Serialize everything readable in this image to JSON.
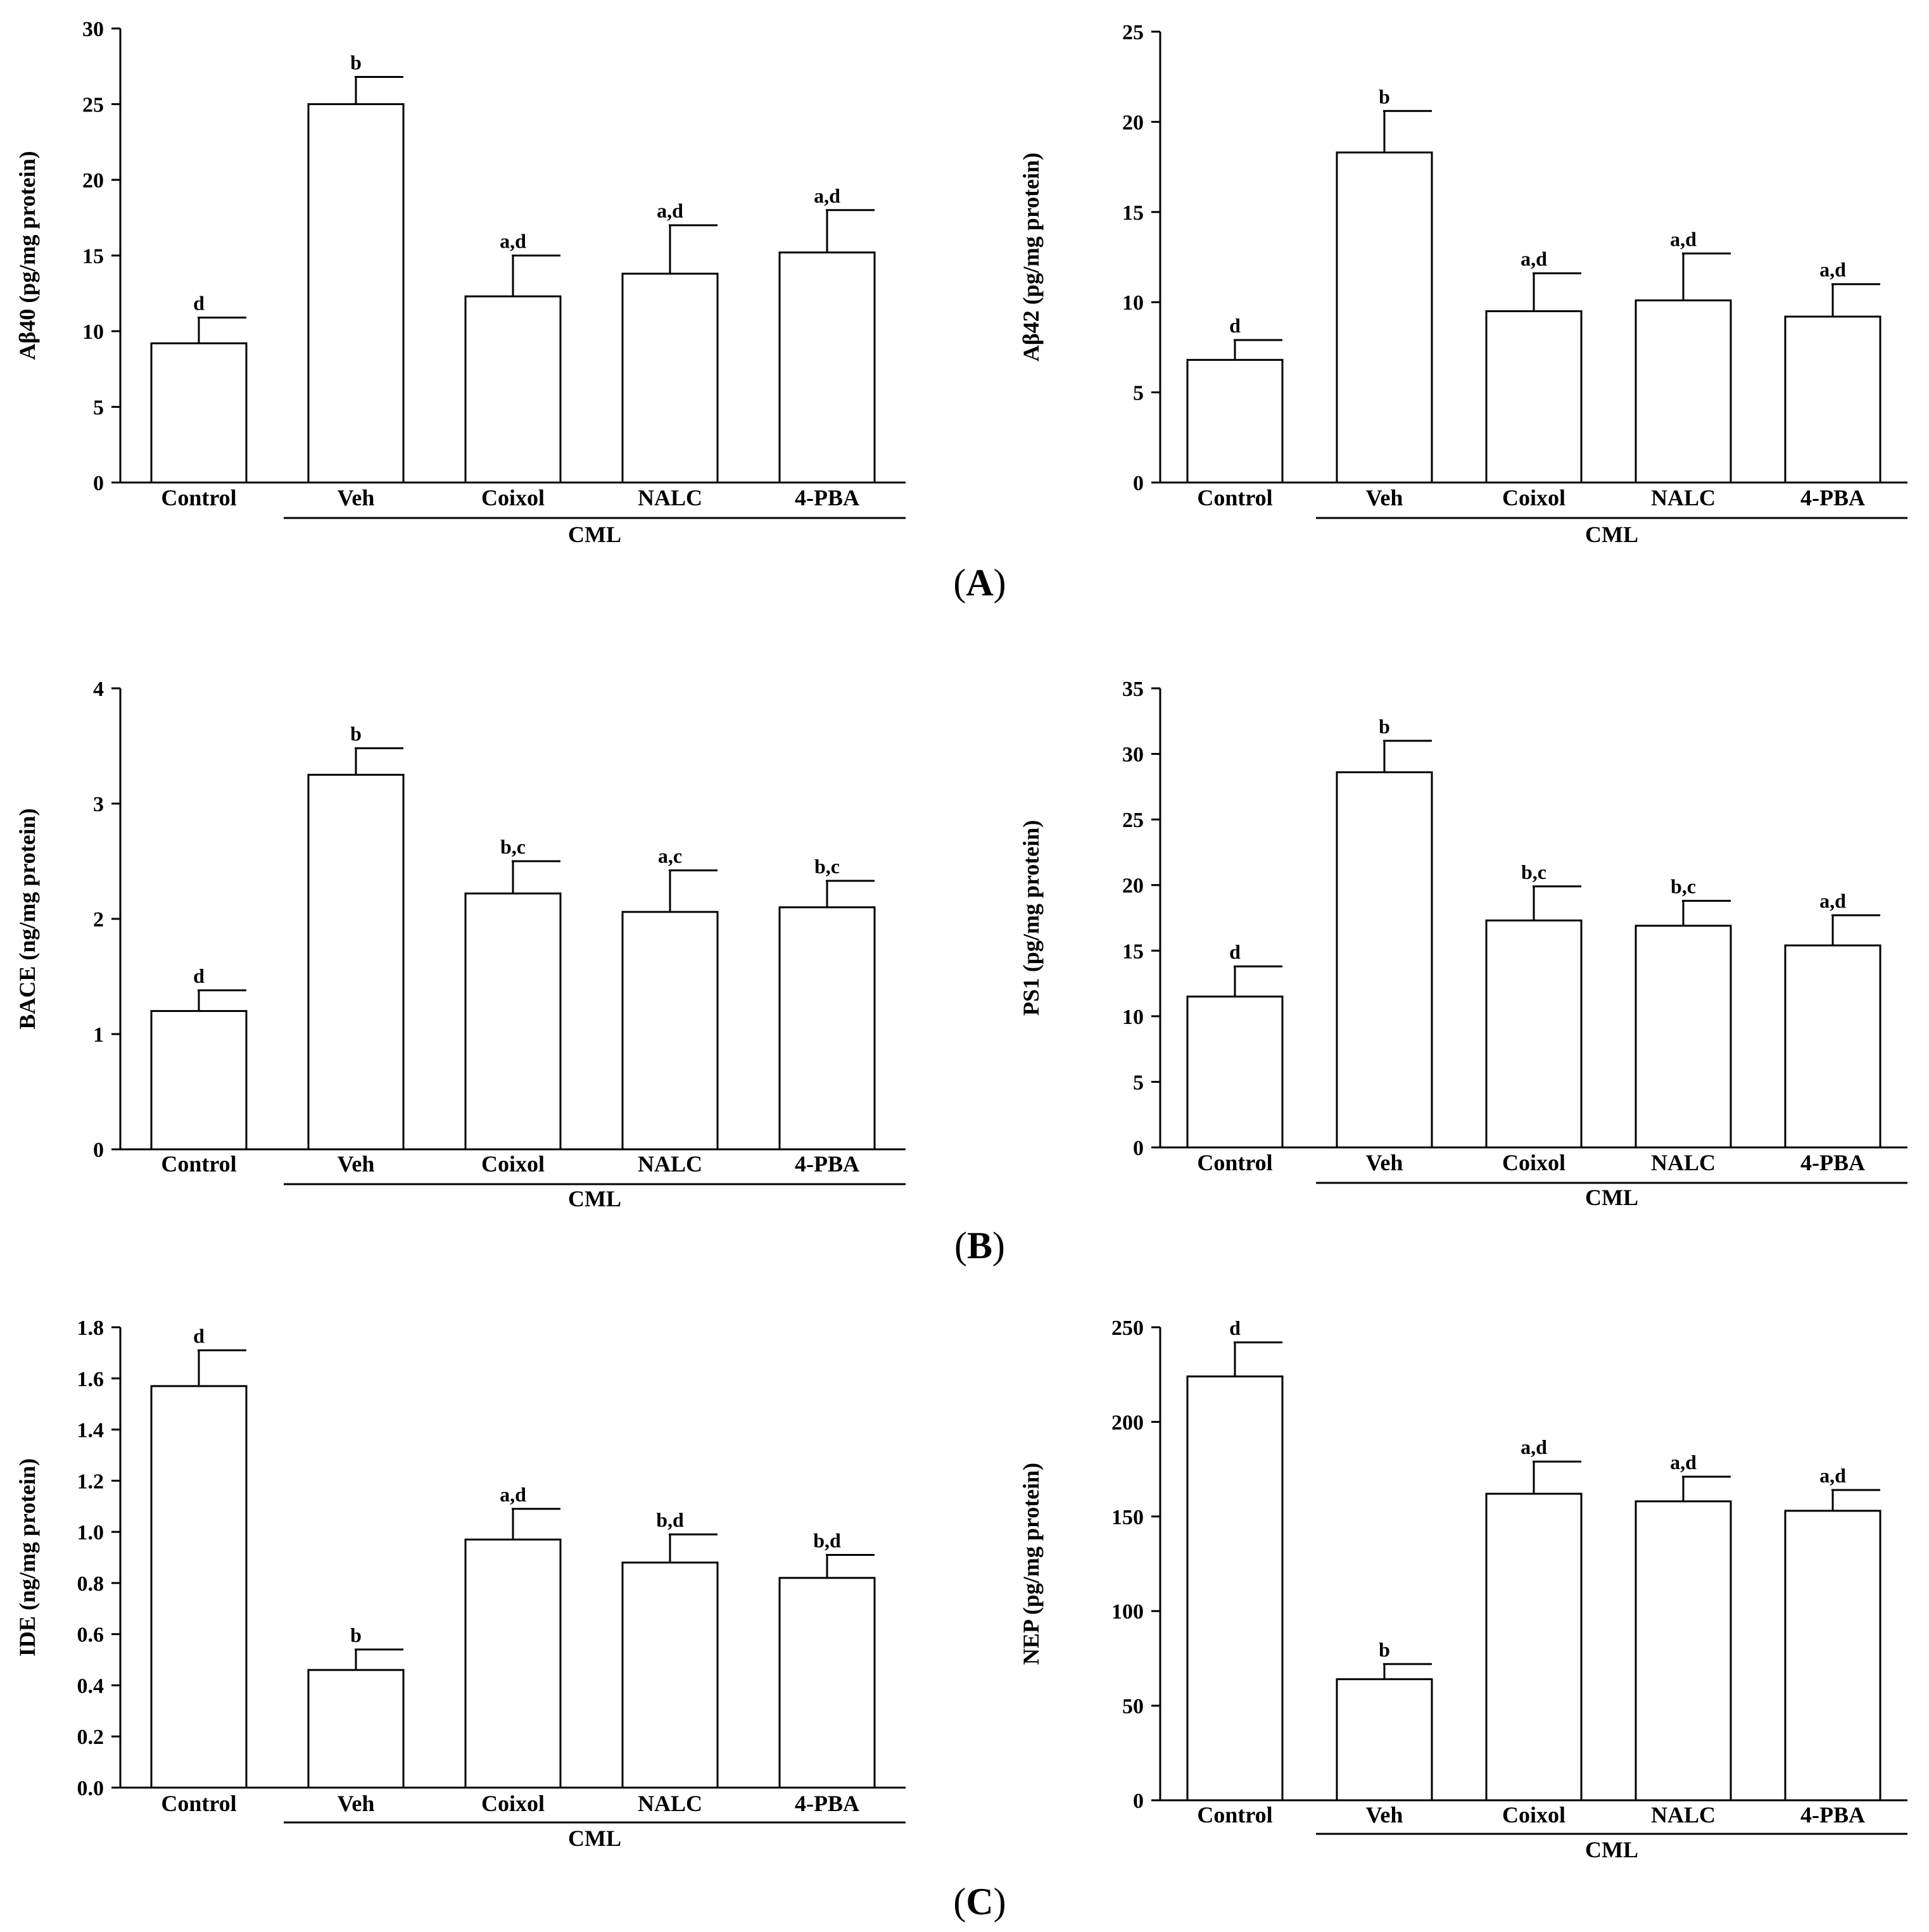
{
  "panel_labels": [
    {
      "open": "(",
      "letter": "A",
      "close": ")"
    },
    {
      "open": "(",
      "letter": "B",
      "close": ")"
    },
    {
      "open": "(",
      "letter": "C",
      "close": ")"
    }
  ],
  "chart_data": [
    {
      "type": "bar",
      "panel": "A",
      "ylabel": "Aβ40 (pg/mg protein)",
      "categories": [
        "Control",
        "Veh",
        "Coixol",
        "NALC",
        "4-PBA"
      ],
      "group_label": "CML",
      "values": [
        9.2,
        25.0,
        12.3,
        13.8,
        15.2
      ],
      "errors": [
        1.7,
        1.8,
        2.7,
        3.2,
        2.8
      ],
      "significance": [
        "d",
        "b",
        "a,d",
        "a,d",
        "a,d"
      ],
      "ylim": [
        0,
        30
      ],
      "yticks": [
        0,
        5,
        10,
        15,
        20,
        25,
        30
      ],
      "ytick_labels": [
        "0",
        "5",
        "10",
        "15",
        "20",
        "25",
        "30"
      ]
    },
    {
      "type": "bar",
      "panel": "A",
      "ylabel": "Aβ42 (pg/mg protein)",
      "categories": [
        "Control",
        "Veh",
        "Coixol",
        "NALC",
        "4-PBA"
      ],
      "group_label": "CML",
      "values": [
        6.8,
        18.3,
        9.5,
        10.1,
        9.2
      ],
      "errors": [
        1.1,
        2.3,
        2.1,
        2.6,
        1.8
      ],
      "significance": [
        "d",
        "b",
        "a,d",
        "a,d",
        "a,d"
      ],
      "ylim": [
        0,
        25
      ],
      "yticks": [
        0,
        5,
        10,
        15,
        20,
        25
      ],
      "ytick_labels": [
        "0",
        "5",
        "10",
        "15",
        "20",
        "25"
      ]
    },
    {
      "type": "bar",
      "panel": "B",
      "ylabel": "BACE (ng/mg protein)",
      "categories": [
        "Control",
        "Veh",
        "Coixol",
        "NALC",
        "4-PBA"
      ],
      "group_label": "CML",
      "values": [
        1.2,
        3.25,
        2.22,
        2.06,
        2.1
      ],
      "errors": [
        0.18,
        0.23,
        0.28,
        0.36,
        0.23
      ],
      "significance": [
        "d",
        "b",
        "b,c",
        "a,c",
        "b,c"
      ],
      "ylim": [
        0,
        4
      ],
      "yticks": [
        0,
        1,
        2,
        3,
        4
      ],
      "ytick_labels": [
        "0",
        "1",
        "2",
        "3",
        "4"
      ]
    },
    {
      "type": "bar",
      "panel": "B",
      "ylabel": "PS1 (pg/mg protein)",
      "categories": [
        "Control",
        "Veh",
        "Coixol",
        "NALC",
        "4-PBA"
      ],
      "group_label": "CML",
      "values": [
        11.5,
        28.6,
        17.3,
        16.9,
        15.4
      ],
      "errors": [
        2.3,
        2.4,
        2.6,
        1.9,
        2.3
      ],
      "significance": [
        "d",
        "b",
        "b,c",
        "b,c",
        "a,d"
      ],
      "ylim": [
        0,
        35
      ],
      "yticks": [
        0,
        5,
        10,
        15,
        20,
        25,
        30,
        35
      ],
      "ytick_labels": [
        "0",
        "5",
        "10",
        "15",
        "20",
        "25",
        "30",
        "35"
      ]
    },
    {
      "type": "bar",
      "panel": "C",
      "ylabel": "IDE (ng/mg protein)",
      "categories": [
        "Control",
        "Veh",
        "Coixol",
        "NALC",
        "4-PBA"
      ],
      "group_label": "CML",
      "values": [
        1.57,
        0.46,
        0.97,
        0.88,
        0.82
      ],
      "errors": [
        0.14,
        0.08,
        0.12,
        0.11,
        0.09
      ],
      "significance": [
        "d",
        "b",
        "a,d",
        "b,d",
        "b,d"
      ],
      "ylim": [
        0,
        1.8
      ],
      "yticks": [
        0,
        0.2,
        0.4,
        0.6,
        0.8,
        1.0,
        1.2,
        1.4,
        1.6,
        1.8
      ],
      "ytick_labels": [
        "0.0",
        "0.2",
        "0.4",
        "0.6",
        "0.8",
        "1.0",
        "1.2",
        "1.4",
        "1.6",
        "1.8"
      ]
    },
    {
      "type": "bar",
      "panel": "C",
      "ylabel": "NEP (pg/mg protein)",
      "categories": [
        "Control",
        "Veh",
        "Coixol",
        "NALC",
        "4-PBA"
      ],
      "group_label": "CML",
      "values": [
        224,
        64,
        162,
        158,
        153
      ],
      "errors": [
        18,
        8,
        17,
        13,
        11
      ],
      "significance": [
        "d",
        "b",
        "a,d",
        "a,d",
        "a,d"
      ],
      "ylim": [
        0,
        250
      ],
      "yticks": [
        0,
        50,
        100,
        150,
        200,
        250
      ],
      "ytick_labels": [
        "0",
        "50",
        "100",
        "150",
        "200",
        "250"
      ]
    }
  ]
}
